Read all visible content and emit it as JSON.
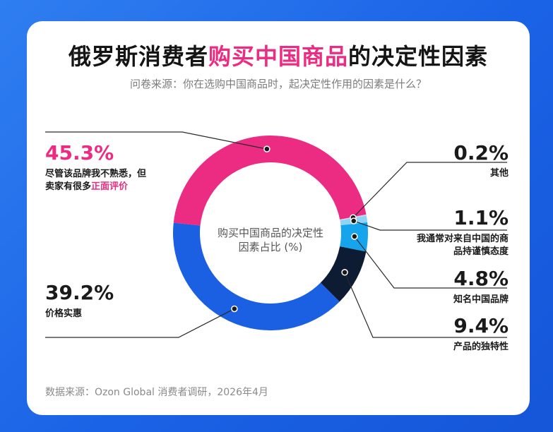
{
  "header": {
    "title_pre": "俄罗斯消费者",
    "title_highlight": "购买中国商品",
    "title_post": "的决定性因素",
    "subtitle": "问卷来源：你在选购中国商品时，起决定性作用的因素是什么？"
  },
  "chart_data": {
    "type": "pie",
    "title": "购买中国商品的决定性因素占比 (%)",
    "center_label_line1": "购买中国商品的决定性",
    "center_label_line2": "因素占比 (%)",
    "series": [
      {
        "name": "尽管该品牌我不熟悉，但卖家有很多正面评价",
        "value": 45.3,
        "color": "#ec2c82",
        "label": "45.3%",
        "desc1": "尽管该品牌我不熟悉，但",
        "desc2_pre": "卖家有很多",
        "desc2_hl": "正面评价"
      },
      {
        "name": "其他",
        "value": 0.2,
        "color": "#c8d8ee",
        "label": "0.2%",
        "desc1": "其他"
      },
      {
        "name": "我通常对来自中国的商品持谨慎态度",
        "value": 1.1,
        "color": "#8fd3f5",
        "label": "1.1%",
        "desc1": "我通常对来自中国的商",
        "desc2": "品持谨慎态度"
      },
      {
        "name": "知名中国品牌",
        "value": 4.8,
        "color": "#16a4ec",
        "label": "4.8%",
        "desc1": "知名中国品牌"
      },
      {
        "name": "产品的独特性",
        "value": 9.4,
        "color": "#0d1b33",
        "label": "9.4%",
        "desc1": "产品的独特性"
      },
      {
        "name": "价格实惠",
        "value": 39.2,
        "color": "#1b5fe3",
        "label": "39.2%",
        "desc1": "价格实惠"
      }
    ]
  },
  "footer": {
    "source": "数据来源：Ozon Global 消费者调研，2026年4月"
  }
}
